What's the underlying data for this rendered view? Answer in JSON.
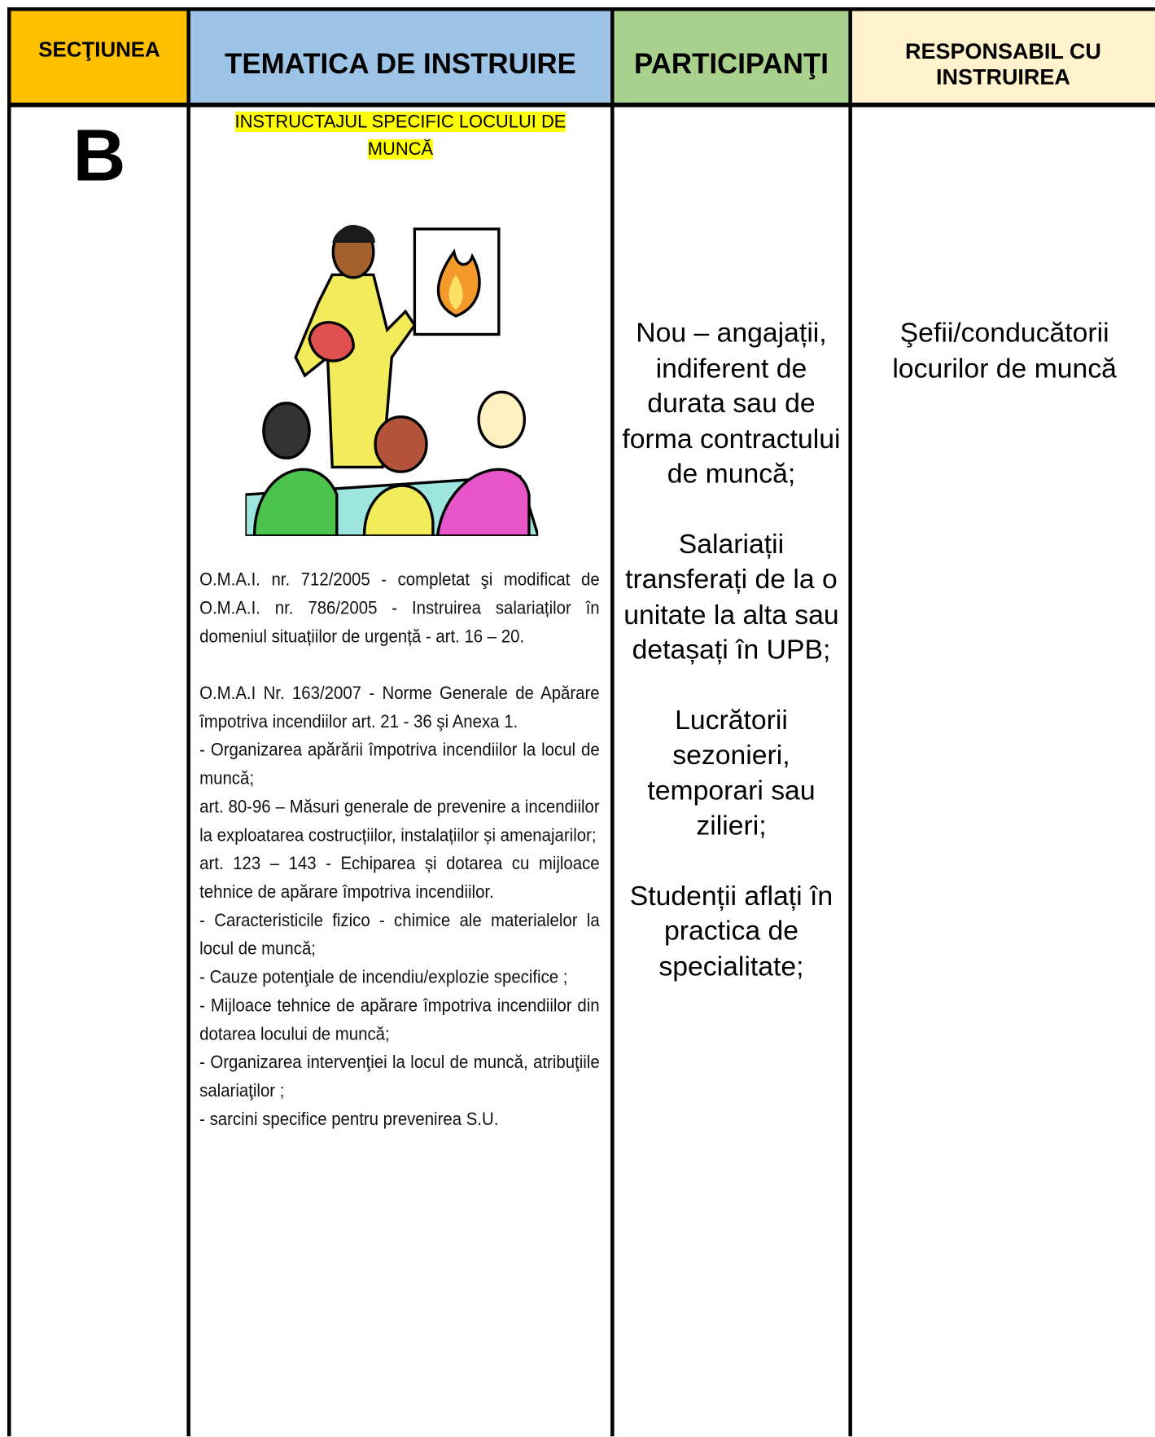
{
  "header": {
    "columns": [
      "SECŢIUNEA",
      "TEMATICA DE INSTRUIRE",
      "PARTICIPANŢI",
      "RESPONSABIL CU INSTRUIREA"
    ]
  },
  "row": {
    "section": "B",
    "topic_title": "INSTRUCTAJUL SPECIFIC LOCULUI DE MUNCĂ",
    "topic_intro": "O.M.A.I. nr. 712/2005 - completat şi modificat de O.M.A.I. nr. 786/2005 - Instruirea salariaților în domeniul situațiilor de urgență - art. 16 – 20.",
    "topic_items": [
      "O.M.A.I Nr. 163/2007 - Norme Generale de Apărare împotriva incendiilor art. 21 - 36 şi Anexa 1.",
      "- Organizarea apărării împotriva incendiilor la locul de muncă;",
      "art. 80-96 – Măsuri generale de prevenire a incendiilor la exploatarea costrucțiilor, instalațiilor și amenajarilor;",
      "art. 123 – 143 - Echiparea și dotarea cu mijloace tehnice de apărare împotriva incendiilor.",
      "- Caracteristicile fizico - chimice ale materialelor la locul de muncă;",
      "- Cauze potenţiale de incendiu/explozie specifice ;",
      "- Mijloace tehnice de apărare împotriva incendiilor din dotarea locului de muncă;",
      "- Organizarea intervenţiei la locul de muncă, atribuţiile salariaţilor ;",
      "- sarcini specifice pentru prevenirea S.U."
    ],
    "participants": [
      "Nou – angajații, indiferent de durata sau de forma contractului de muncă;",
      "Salariații transferați de la o unitate la alta sau detașați în UPB;",
      "Lucrătorii sezonieri, temporari sau zilieri;",
      "Studenții aflați în practica de specialitate;"
    ],
    "responsible": "Şefii/conducătorii locurilor de muncă"
  }
}
